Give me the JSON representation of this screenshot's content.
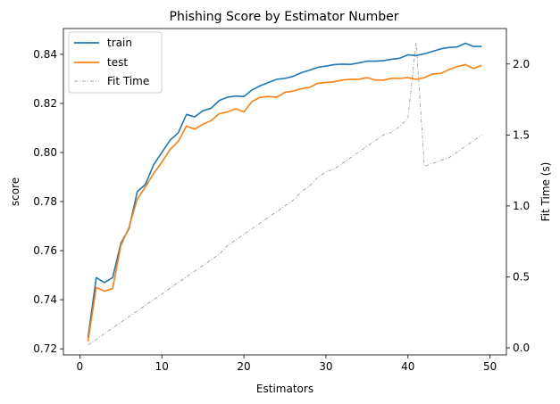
{
  "chart_data": {
    "type": "line",
    "title": "Phishing Score by Estimator Number",
    "xlabel": "Estimators",
    "ylabel": "score",
    "y2label": "Fit Time (s)",
    "xlim": [
      -2,
      52
    ],
    "ylim": [
      0.7175,
      0.8505
    ],
    "y2lim": [
      -0.05,
      2.25
    ],
    "xticks": [
      0,
      10,
      20,
      30,
      40,
      50
    ],
    "yticks": [
      0.72,
      0.74,
      0.76,
      0.78,
      0.8,
      0.82,
      0.84
    ],
    "y2ticks": [
      0.0,
      0.5,
      1.0,
      1.5,
      2.0
    ],
    "xtick_labels": [
      "0",
      "10",
      "20",
      "30",
      "40",
      "50"
    ],
    "ytick_labels": [
      "0.72",
      "0.74",
      "0.76",
      "0.78",
      "0.80",
      "0.82",
      "0.84"
    ],
    "y2tick_labels": [
      "0.0",
      "0.5",
      "1.0",
      "1.5",
      "2.0"
    ],
    "legend_position": "top-left",
    "grid": false,
    "x": [
      1,
      2,
      3,
      4,
      5,
      6,
      7,
      8,
      9,
      10,
      11,
      12,
      13,
      14,
      15,
      16,
      17,
      18,
      19,
      20,
      21,
      22,
      23,
      24,
      25,
      26,
      27,
      28,
      29,
      30,
      31,
      32,
      33,
      34,
      35,
      36,
      37,
      38,
      39,
      40,
      41,
      42,
      43,
      44,
      45,
      46,
      47,
      48,
      49
    ],
    "series": [
      {
        "name": "train",
        "axis": "left",
        "color": "#1f77b4",
        "style": "solid",
        "values": [
          0.7245,
          0.749,
          0.747,
          0.749,
          0.763,
          0.769,
          0.784,
          0.787,
          0.795,
          0.8,
          0.805,
          0.808,
          0.8155,
          0.8145,
          0.817,
          0.818,
          0.8212,
          0.8225,
          0.823,
          0.8228,
          0.8255,
          0.8272,
          0.8285,
          0.8298,
          0.8302,
          0.831,
          0.8325,
          0.8335,
          0.8347,
          0.8352,
          0.8358,
          0.836,
          0.8359,
          0.8365,
          0.8372,
          0.8372,
          0.8374,
          0.838,
          0.8384,
          0.8398,
          0.8395,
          0.8402,
          0.8412,
          0.8422,
          0.8428,
          0.843,
          0.8445,
          0.8432,
          0.8432
        ]
      },
      {
        "name": "test",
        "axis": "left",
        "color": "#ff7f0e",
        "style": "solid",
        "values": [
          0.723,
          0.745,
          0.7435,
          0.7445,
          0.762,
          0.7695,
          0.781,
          0.786,
          0.7915,
          0.796,
          0.8012,
          0.8045,
          0.8108,
          0.8095,
          0.8115,
          0.813,
          0.8158,
          0.8165,
          0.8178,
          0.8165,
          0.8208,
          0.8225,
          0.8228,
          0.8225,
          0.8245,
          0.825,
          0.826,
          0.8265,
          0.8282,
          0.8285,
          0.8288,
          0.8295,
          0.8298,
          0.8298,
          0.8305,
          0.8295,
          0.8295,
          0.8302,
          0.8302,
          0.8305,
          0.8298,
          0.8305,
          0.832,
          0.8322,
          0.8338,
          0.835,
          0.8358,
          0.8342,
          0.8355
        ]
      },
      {
        "name": "Fit Time",
        "axis": "right",
        "color": "#888888",
        "style": "dashdot",
        "values": [
          0.02,
          0.06,
          0.1,
          0.14,
          0.18,
          0.22,
          0.26,
          0.3,
          0.34,
          0.38,
          0.42,
          0.46,
          0.5,
          0.54,
          0.58,
          0.62,
          0.66,
          0.72,
          0.76,
          0.8,
          0.84,
          0.88,
          0.92,
          0.96,
          1.0,
          1.04,
          1.1,
          1.14,
          1.2,
          1.24,
          1.26,
          1.3,
          1.34,
          1.38,
          1.42,
          1.46,
          1.5,
          1.52,
          1.56,
          1.62,
          2.15,
          1.28,
          1.3,
          1.32,
          1.34,
          1.38,
          1.42,
          1.46,
          1.5
        ]
      }
    ]
  }
}
